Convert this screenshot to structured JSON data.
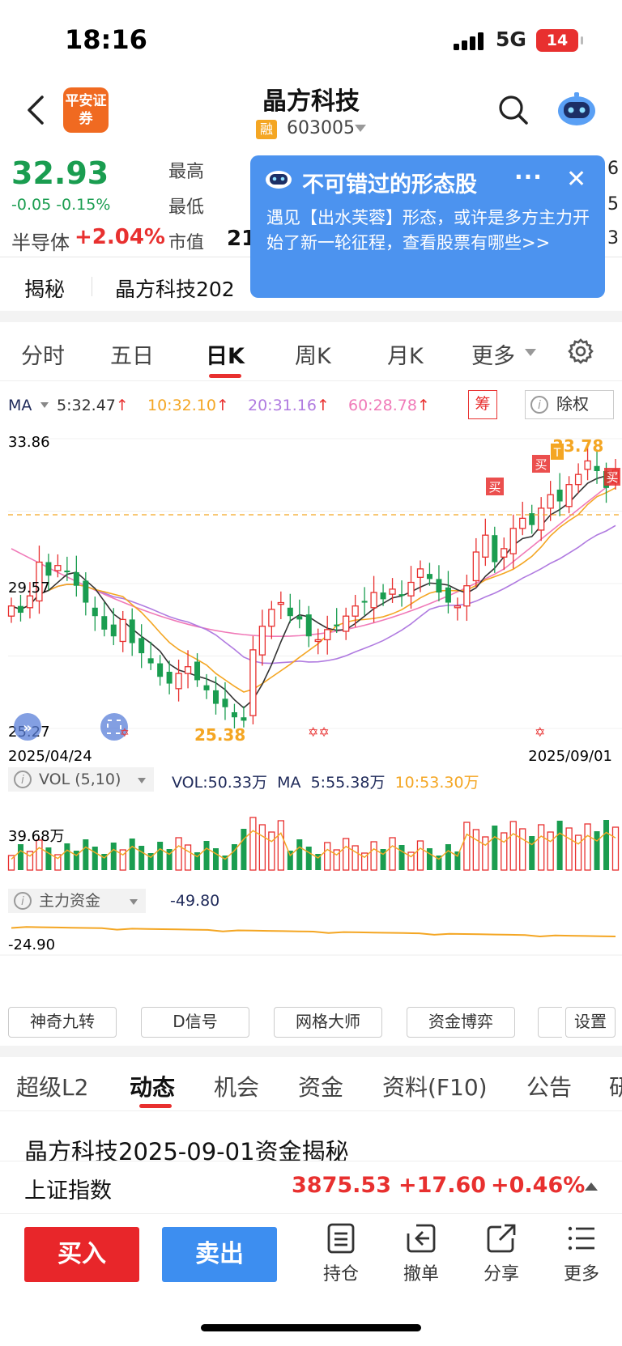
{
  "status_bar": {
    "time": "18:16",
    "network": "5G",
    "battery": "14"
  },
  "header": {
    "stock_name": "晶方科技",
    "margin_badge": "融",
    "stock_code": "603005",
    "broker_logo": "平安证券"
  },
  "quote": {
    "price": "32.93",
    "change": "-0.05 -0.15%",
    "sector_label": "半导体",
    "sector_change": "+2.04%",
    "high_label": "最高",
    "low_label": "最低",
    "cap_label": "市值",
    "cap_value_partial": "21",
    "edge_right_1": "6",
    "edge_right_2": "5",
    "edge_right_3": "3"
  },
  "popup": {
    "title": "不可错过的形态股",
    "more": "···",
    "close": "✕",
    "body": "遇见【出水芙蓉】形态，或许是多方主力开始了新一轮征程，查看股票有哪些>>"
  },
  "ticker": {
    "label": "揭秘",
    "text": "晶方科技202"
  },
  "period_tabs": [
    "分时",
    "五日",
    "日K",
    "周K",
    "月K",
    "更多"
  ],
  "ma_legend": {
    "label": "MA",
    "ma5": "5:32.47",
    "ma10": "10:32.10",
    "ma20": "20:31.16",
    "ma60": "60:28.78",
    "chip_button": "筹",
    "exright_button": "除权"
  },
  "kchart_labels": {
    "y_top": "33.86",
    "y_mid": "29.57",
    "y_bot": "25.27",
    "high_mark": "33.78",
    "low_mark": "25.38",
    "date_start": "2025/04/24",
    "date_end": "2025/09/01",
    "buy_mark": "买",
    "t_mark": "T"
  },
  "vol_panel": {
    "header": "VOL (5,10)",
    "vol": "VOL:50.33万",
    "ma_label": "MA",
    "ma5": "5:55.38万",
    "ma10": "10:53.30万",
    "y_label": "39.68万"
  },
  "fund_panel": {
    "header": "主力资金",
    "value": "-49.80",
    "y_label": "-24.90"
  },
  "indicator_buttons": [
    "神奇九转",
    "D信号",
    "网格大师",
    "资金博弈",
    "设置"
  ],
  "bottom_tabs": [
    "超级L2",
    "动态",
    "机会",
    "资金",
    "资料(F10)",
    "公告",
    "研"
  ],
  "news_title": "晶方科技2025-09-01资金揭秘",
  "index_bar": {
    "name": "上证指数",
    "value": "3875.53",
    "change": "+17.60",
    "pct": "+0.46%"
  },
  "actions": {
    "buy": "买入",
    "sell": "卖出",
    "holdings": "持仓",
    "cancel": "撤单",
    "share": "分享",
    "more": "更多"
  },
  "colors": {
    "up": "#e8302f",
    "down": "#1a9d50",
    "ma5": "#333333",
    "ma10": "#f4a623",
    "ma20": "#b07be0",
    "ma60": "#f07ab8"
  },
  "chart_data": {
    "type": "candlestick",
    "title": "",
    "x_range": [
      "2025/04/24",
      "2025/09/01"
    ],
    "ylim": [
      25.27,
      33.86
    ],
    "y_ticks": [
      33.86,
      29.57,
      25.27
    ],
    "high": 33.78,
    "low": 25.38,
    "last_close": 32.93,
    "ma": {
      "ma5": 32.47,
      "ma10": 32.1,
      "ma20": 31.16,
      "ma60": 28.78
    },
    "close_series": [
      28.9,
      28.7,
      29.2,
      30.2,
      29.8,
      30.1,
      29.9,
      29.5,
      29.0,
      28.6,
      28.2,
      28.0,
      28.5,
      27.8,
      27.5,
      27.2,
      26.8,
      26.6,
      26.9,
      27.1,
      26.7,
      26.4,
      26.0,
      25.9,
      25.6,
      25.5,
      27.6,
      28.3,
      28.8,
      29.0,
      28.6,
      28.5,
      28.0,
      27.9,
      28.2,
      28.3,
      28.6,
      28.9,
      29.0,
      29.3,
      29.1,
      29.4,
      29.2,
      29.6,
      30.0,
      29.7,
      29.3,
      29.0,
      28.9,
      29.5,
      30.5,
      31.0,
      30.2,
      30.6,
      31.2,
      31.5,
      31.3,
      31.8,
      32.2,
      32.0,
      32.5,
      32.8,
      33.2,
      32.9,
      32.4,
      32.93
    ],
    "volume": {
      "y_label": "39.68万",
      "vol": "50.33万",
      "ma5": "55.38万",
      "ma10": "53.30万"
    },
    "main_fund": {
      "value": -49.8,
      "y_label": -24.9
    }
  }
}
